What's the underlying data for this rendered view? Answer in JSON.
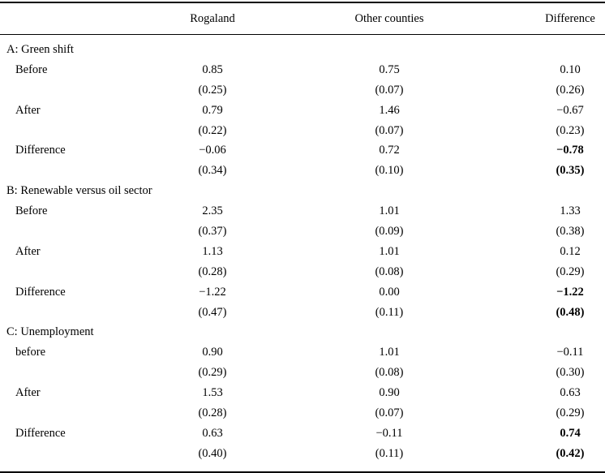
{
  "colors": {
    "background": "#ffffff",
    "text": "#000000",
    "rule": "#000000"
  },
  "table": {
    "columns": [
      "",
      "Rogaland",
      "Other counties",
      "Difference"
    ],
    "panels": [
      {
        "title": "A: Green shift",
        "rows": [
          {
            "label": "Before",
            "values": [
              "0.85",
              "0.75",
              "0.10"
            ],
            "bold": [
              false,
              false,
              false
            ]
          },
          {
            "label": "",
            "values": [
              "(0.25)",
              "(0.07)",
              "(0.26)"
            ],
            "bold": [
              false,
              false,
              false
            ]
          },
          {
            "label": "After",
            "values": [
              "0.79",
              "1.46",
              "−0.67"
            ],
            "bold": [
              false,
              false,
              false
            ]
          },
          {
            "label": "",
            "values": [
              "(0.22)",
              "(0.07)",
              "(0.23)"
            ],
            "bold": [
              false,
              false,
              false
            ]
          },
          {
            "label": "Difference",
            "values": [
              "−0.06",
              "0.72",
              "−0.78"
            ],
            "bold": [
              false,
              false,
              true
            ]
          },
          {
            "label": "",
            "values": [
              "(0.34)",
              "(0.10)",
              "(0.35)"
            ],
            "bold": [
              false,
              false,
              true
            ]
          }
        ]
      },
      {
        "title": "B: Renewable versus oil sector",
        "rows": [
          {
            "label": "Before",
            "values": [
              "2.35",
              "1.01",
              "1.33"
            ],
            "bold": [
              false,
              false,
              false
            ]
          },
          {
            "label": "",
            "values": [
              "(0.37)",
              "(0.09)",
              "(0.38)"
            ],
            "bold": [
              false,
              false,
              false
            ]
          },
          {
            "label": "After",
            "values": [
              "1.13",
              "1.01",
              "0.12"
            ],
            "bold": [
              false,
              false,
              false
            ]
          },
          {
            "label": "",
            "values": [
              "(0.28)",
              "(0.08)",
              "(0.29)"
            ],
            "bold": [
              false,
              false,
              false
            ]
          },
          {
            "label": "Difference",
            "values": [
              "−1.22",
              "0.00",
              "−1.22"
            ],
            "bold": [
              false,
              false,
              true
            ]
          },
          {
            "label": "",
            "values": [
              "(0.47)",
              "(0.11)",
              "(0.48)"
            ],
            "bold": [
              false,
              false,
              true
            ]
          }
        ]
      },
      {
        "title": "C: Unemployment",
        "rows": [
          {
            "label": "before",
            "values": [
              "0.90",
              "1.01",
              "−0.11"
            ],
            "bold": [
              false,
              false,
              false
            ]
          },
          {
            "label": "",
            "values": [
              "(0.29)",
              "(0.08)",
              "(0.30)"
            ],
            "bold": [
              false,
              false,
              false
            ]
          },
          {
            "label": "After",
            "values": [
              "1.53",
              "0.90",
              "0.63"
            ],
            "bold": [
              false,
              false,
              false
            ]
          },
          {
            "label": "",
            "values": [
              "(0.28)",
              "(0.07)",
              "(0.29)"
            ],
            "bold": [
              false,
              false,
              false
            ]
          },
          {
            "label": "Difference",
            "values": [
              "0.63",
              "−0.11",
              "0.74"
            ],
            "bold": [
              false,
              false,
              true
            ]
          },
          {
            "label": "",
            "values": [
              "(0.40)",
              "(0.11)",
              "(0.42)"
            ],
            "bold": [
              false,
              false,
              true
            ]
          }
        ]
      }
    ]
  }
}
